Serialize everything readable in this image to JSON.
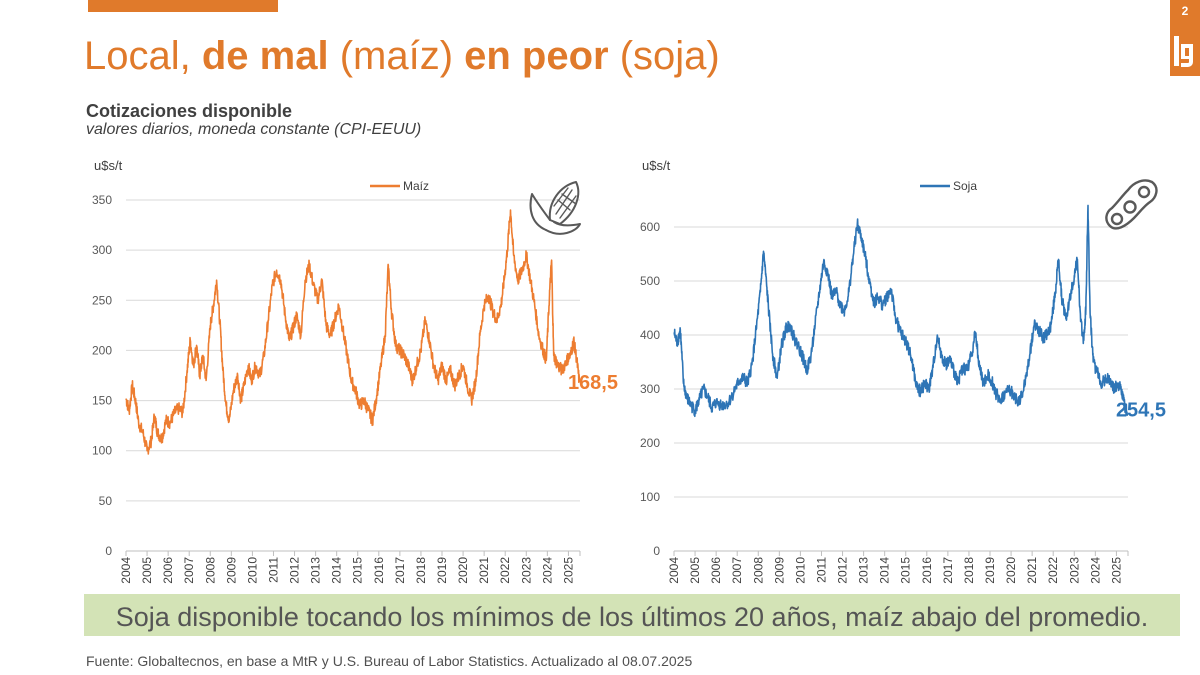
{
  "page": {
    "number": "2",
    "title_parts": {
      "p1": "Local, ",
      "p2": "de mal",
      "p3": " (maíz) ",
      "p4": "en peor",
      "p5": " (soja)"
    },
    "subtitle": "Cotizaciones disponible",
    "subtitle2": "valores diarios, moneda constante (CPI-EEUU)",
    "banner": "Soja disponible tocando los mínimos de los últimos 20 años, maíz abajo del promedio.",
    "source": "Fuente: Globaltecnos, en base a MtR y U.S. Bureau of Labor Statistics. Actualizado al 08.07.2025"
  },
  "colors": {
    "brand": "#e07a2b",
    "maiz": "#ed7d31",
    "soja": "#2e75b6",
    "banner_bg": "#d3e3b6",
    "grid": "#d9d9d9"
  },
  "chart_data": [
    {
      "type": "line",
      "series_name": "Maíz",
      "ylabel": "u$s/t",
      "ylim": [
        0,
        350
      ],
      "yticks": [
        0,
        50,
        100,
        150,
        200,
        250,
        300,
        350
      ],
      "xlim": [
        2004,
        2025.55
      ],
      "categories": [
        "2004",
        "2005",
        "2006",
        "2007",
        "2008",
        "2009",
        "2010",
        "2011",
        "2012",
        "2013",
        "2014",
        "2015",
        "2016",
        "2017",
        "2018",
        "2019",
        "2020",
        "2021",
        "2022",
        "2023",
        "2024",
        "2025"
      ],
      "last_value_label": "168,5",
      "points": [
        [
          2004.0,
          152
        ],
        [
          2004.15,
          140
        ],
        [
          2004.3,
          165
        ],
        [
          2004.45,
          150
        ],
        [
          2004.6,
          128
        ],
        [
          2004.8,
          118
        ],
        [
          2005.0,
          100
        ],
        [
          2005.2,
          110
        ],
        [
          2005.35,
          135
        ],
        [
          2005.5,
          118
        ],
        [
          2005.7,
          112
        ],
        [
          2005.9,
          130
        ],
        [
          2006.1,
          128
        ],
        [
          2006.3,
          138
        ],
        [
          2006.5,
          142
        ],
        [
          2006.7,
          138
        ],
        [
          2006.9,
          180
        ],
        [
          2007.05,
          210
        ],
        [
          2007.2,
          185
        ],
        [
          2007.35,
          205
        ],
        [
          2007.5,
          175
        ],
        [
          2007.65,
          195
        ],
        [
          2007.8,
          170
        ],
        [
          2008.0,
          225
        ],
        [
          2008.15,
          245
        ],
        [
          2008.3,
          270
        ],
        [
          2008.45,
          230
        ],
        [
          2008.6,
          180
        ],
        [
          2008.75,
          145
        ],
        [
          2008.9,
          130
        ],
        [
          2009.1,
          160
        ],
        [
          2009.3,
          175
        ],
        [
          2009.45,
          150
        ],
        [
          2009.6,
          165
        ],
        [
          2009.8,
          185
        ],
        [
          2009.95,
          170
        ],
        [
          2010.15,
          185
        ],
        [
          2010.35,
          175
        ],
        [
          2010.55,
          195
        ],
        [
          2010.75,
          230
        ],
        [
          2010.95,
          265
        ],
        [
          2011.15,
          280
        ],
        [
          2011.35,
          270
        ],
        [
          2011.55,
          235
        ],
        [
          2011.75,
          210
        ],
        [
          2011.9,
          220
        ],
        [
          2012.1,
          235
        ],
        [
          2012.3,
          215
        ],
        [
          2012.5,
          270
        ],
        [
          2012.7,
          285
        ],
        [
          2012.9,
          265
        ],
        [
          2013.1,
          250
        ],
        [
          2013.3,
          270
        ],
        [
          2013.5,
          225
        ],
        [
          2013.7,
          215
        ],
        [
          2013.9,
          230
        ],
        [
          2014.1,
          245
        ],
        [
          2014.3,
          220
        ],
        [
          2014.5,
          195
        ],
        [
          2014.7,
          170
        ],
        [
          2014.9,
          160
        ],
        [
          2015.1,
          145
        ],
        [
          2015.3,
          150
        ],
        [
          2015.5,
          140
        ],
        [
          2015.7,
          130
        ],
        [
          2015.9,
          155
        ],
        [
          2016.1,
          185
        ],
        [
          2016.3,
          215
        ],
        [
          2016.45,
          285
        ],
        [
          2016.6,
          240
        ],
        [
          2016.8,
          205
        ],
        [
          2017.0,
          200
        ],
        [
          2017.2,
          195
        ],
        [
          2017.4,
          185
        ],
        [
          2017.6,
          170
        ],
        [
          2017.8,
          185
        ],
        [
          2018.0,
          200
        ],
        [
          2018.2,
          230
        ],
        [
          2018.4,
          210
        ],
        [
          2018.6,
          185
        ],
        [
          2018.8,
          170
        ],
        [
          2019.0,
          185
        ],
        [
          2019.2,
          170
        ],
        [
          2019.4,
          180
        ],
        [
          2019.6,
          165
        ],
        [
          2019.8,
          175
        ],
        [
          2020.0,
          185
        ],
        [
          2020.2,
          165
        ],
        [
          2020.4,
          150
        ],
        [
          2020.6,
          170
        ],
        [
          2020.8,
          215
        ],
        [
          2021.0,
          245
        ],
        [
          2021.2,
          255
        ],
        [
          2021.4,
          240
        ],
        [
          2021.6,
          230
        ],
        [
          2021.8,
          245
        ],
        [
          2021.95,
          270
        ],
        [
          2022.1,
          300
        ],
        [
          2022.25,
          340
        ],
        [
          2022.4,
          295
        ],
        [
          2022.6,
          270
        ],
        [
          2022.8,
          280
        ],
        [
          2023.0,
          295
        ],
        [
          2023.2,
          270
        ],
        [
          2023.4,
          245
        ],
        [
          2023.6,
          215
        ],
        [
          2023.8,
          200
        ],
        [
          2023.95,
          190
        ],
        [
          2024.1,
          255
        ],
        [
          2024.2,
          290
        ],
        [
          2024.3,
          195
        ],
        [
          2024.5,
          185
        ],
        [
          2024.7,
          180
        ],
        [
          2024.9,
          190
        ],
        [
          2025.1,
          195
        ],
        [
          2025.25,
          210
        ],
        [
          2025.4,
          190
        ],
        [
          2025.52,
          168.5
        ]
      ]
    },
    {
      "type": "line",
      "series_name": "Soja",
      "ylabel": "u$s/t",
      "ylim": [
        0,
        650
      ],
      "yticks": [
        0,
        100,
        200,
        300,
        400,
        500,
        600
      ],
      "xlim": [
        2004,
        2025.55
      ],
      "categories": [
        "2004",
        "2005",
        "2006",
        "2007",
        "2008",
        "2009",
        "2010",
        "2011",
        "2012",
        "2013",
        "2014",
        "2015",
        "2016",
        "2017",
        "2018",
        "2019",
        "2020",
        "2021",
        "2022",
        "2023",
        "2024",
        "2025"
      ],
      "last_value_label": "254,5",
      "points": [
        [
          2004.0,
          405
        ],
        [
          2004.15,
          385
        ],
        [
          2004.3,
          410
        ],
        [
          2004.45,
          310
        ],
        [
          2004.6,
          285
        ],
        [
          2004.8,
          270
        ],
        [
          2005.0,
          260
        ],
        [
          2005.2,
          280
        ],
        [
          2005.4,
          300
        ],
        [
          2005.6,
          285
        ],
        [
          2005.8,
          265
        ],
        [
          2006.0,
          275
        ],
        [
          2006.3,
          270
        ],
        [
          2006.6,
          275
        ],
        [
          2006.9,
          300
        ],
        [
          2007.1,
          315
        ],
        [
          2007.3,
          320
        ],
        [
          2007.5,
          310
        ],
        [
          2007.7,
          345
        ],
        [
          2007.9,
          410
        ],
        [
          2008.1,
          480
        ],
        [
          2008.25,
          555
        ],
        [
          2008.4,
          490
        ],
        [
          2008.55,
          420
        ],
        [
          2008.7,
          360
        ],
        [
          2008.9,
          320
        ],
        [
          2009.1,
          380
        ],
        [
          2009.3,
          410
        ],
        [
          2009.5,
          420
        ],
        [
          2009.7,
          395
        ],
        [
          2009.9,
          380
        ],
        [
          2010.1,
          360
        ],
        [
          2010.3,
          335
        ],
        [
          2010.5,
          360
        ],
        [
          2010.7,
          420
        ],
        [
          2010.9,
          480
        ],
        [
          2011.1,
          535
        ],
        [
          2011.3,
          515
        ],
        [
          2011.5,
          470
        ],
        [
          2011.7,
          480
        ],
        [
          2011.9,
          455
        ],
        [
          2012.1,
          445
        ],
        [
          2012.3,
          480
        ],
        [
          2012.5,
          545
        ],
        [
          2012.7,
          605
        ],
        [
          2012.9,
          580
        ],
        [
          2013.1,
          540
        ],
        [
          2013.3,
          495
        ],
        [
          2013.5,
          460
        ],
        [
          2013.7,
          470
        ],
        [
          2013.9,
          455
        ],
        [
          2014.1,
          470
        ],
        [
          2014.3,
          485
        ],
        [
          2014.5,
          435
        ],
        [
          2014.7,
          410
        ],
        [
          2014.9,
          395
        ],
        [
          2015.1,
          380
        ],
        [
          2015.3,
          350
        ],
        [
          2015.5,
          305
        ],
        [
          2015.7,
          295
        ],
        [
          2015.9,
          310
        ],
        [
          2016.1,
          300
        ],
        [
          2016.3,
          340
        ],
        [
          2016.5,
          400
        ],
        [
          2016.7,
          360
        ],
        [
          2016.9,
          345
        ],
        [
          2017.1,
          355
        ],
        [
          2017.3,
          330
        ],
        [
          2017.5,
          315
        ],
        [
          2017.7,
          340
        ],
        [
          2017.9,
          335
        ],
        [
          2018.1,
          360
        ],
        [
          2018.3,
          405
        ],
        [
          2018.5,
          340
        ],
        [
          2018.7,
          310
        ],
        [
          2018.9,
          325
        ],
        [
          2019.1,
          315
        ],
        [
          2019.3,
          290
        ],
        [
          2019.5,
          280
        ],
        [
          2019.7,
          290
        ],
        [
          2019.9,
          300
        ],
        [
          2020.1,
          290
        ],
        [
          2020.3,
          275
        ],
        [
          2020.5,
          285
        ],
        [
          2020.7,
          320
        ],
        [
          2020.9,
          365
        ],
        [
          2021.1,
          420
        ],
        [
          2021.3,
          410
        ],
        [
          2021.5,
          395
        ],
        [
          2021.7,
          400
        ],
        [
          2021.9,
          420
        ],
        [
          2022.1,
          480
        ],
        [
          2022.25,
          540
        ],
        [
          2022.4,
          470
        ],
        [
          2022.6,
          430
        ],
        [
          2022.8,
          470
        ],
        [
          2023.0,
          510
        ],
        [
          2023.15,
          540
        ],
        [
          2023.3,
          425
        ],
        [
          2023.45,
          390
        ],
        [
          2023.55,
          450
        ],
        [
          2023.65,
          640
        ],
        [
          2023.75,
          440
        ],
        [
          2023.9,
          350
        ],
        [
          2024.1,
          330
        ],
        [
          2024.3,
          310
        ],
        [
          2024.5,
          320
        ],
        [
          2024.7,
          315
        ],
        [
          2024.9,
          300
        ],
        [
          2025.1,
          310
        ],
        [
          2025.25,
          295
        ],
        [
          2025.4,
          270
        ],
        [
          2025.52,
          254.5
        ]
      ]
    }
  ]
}
